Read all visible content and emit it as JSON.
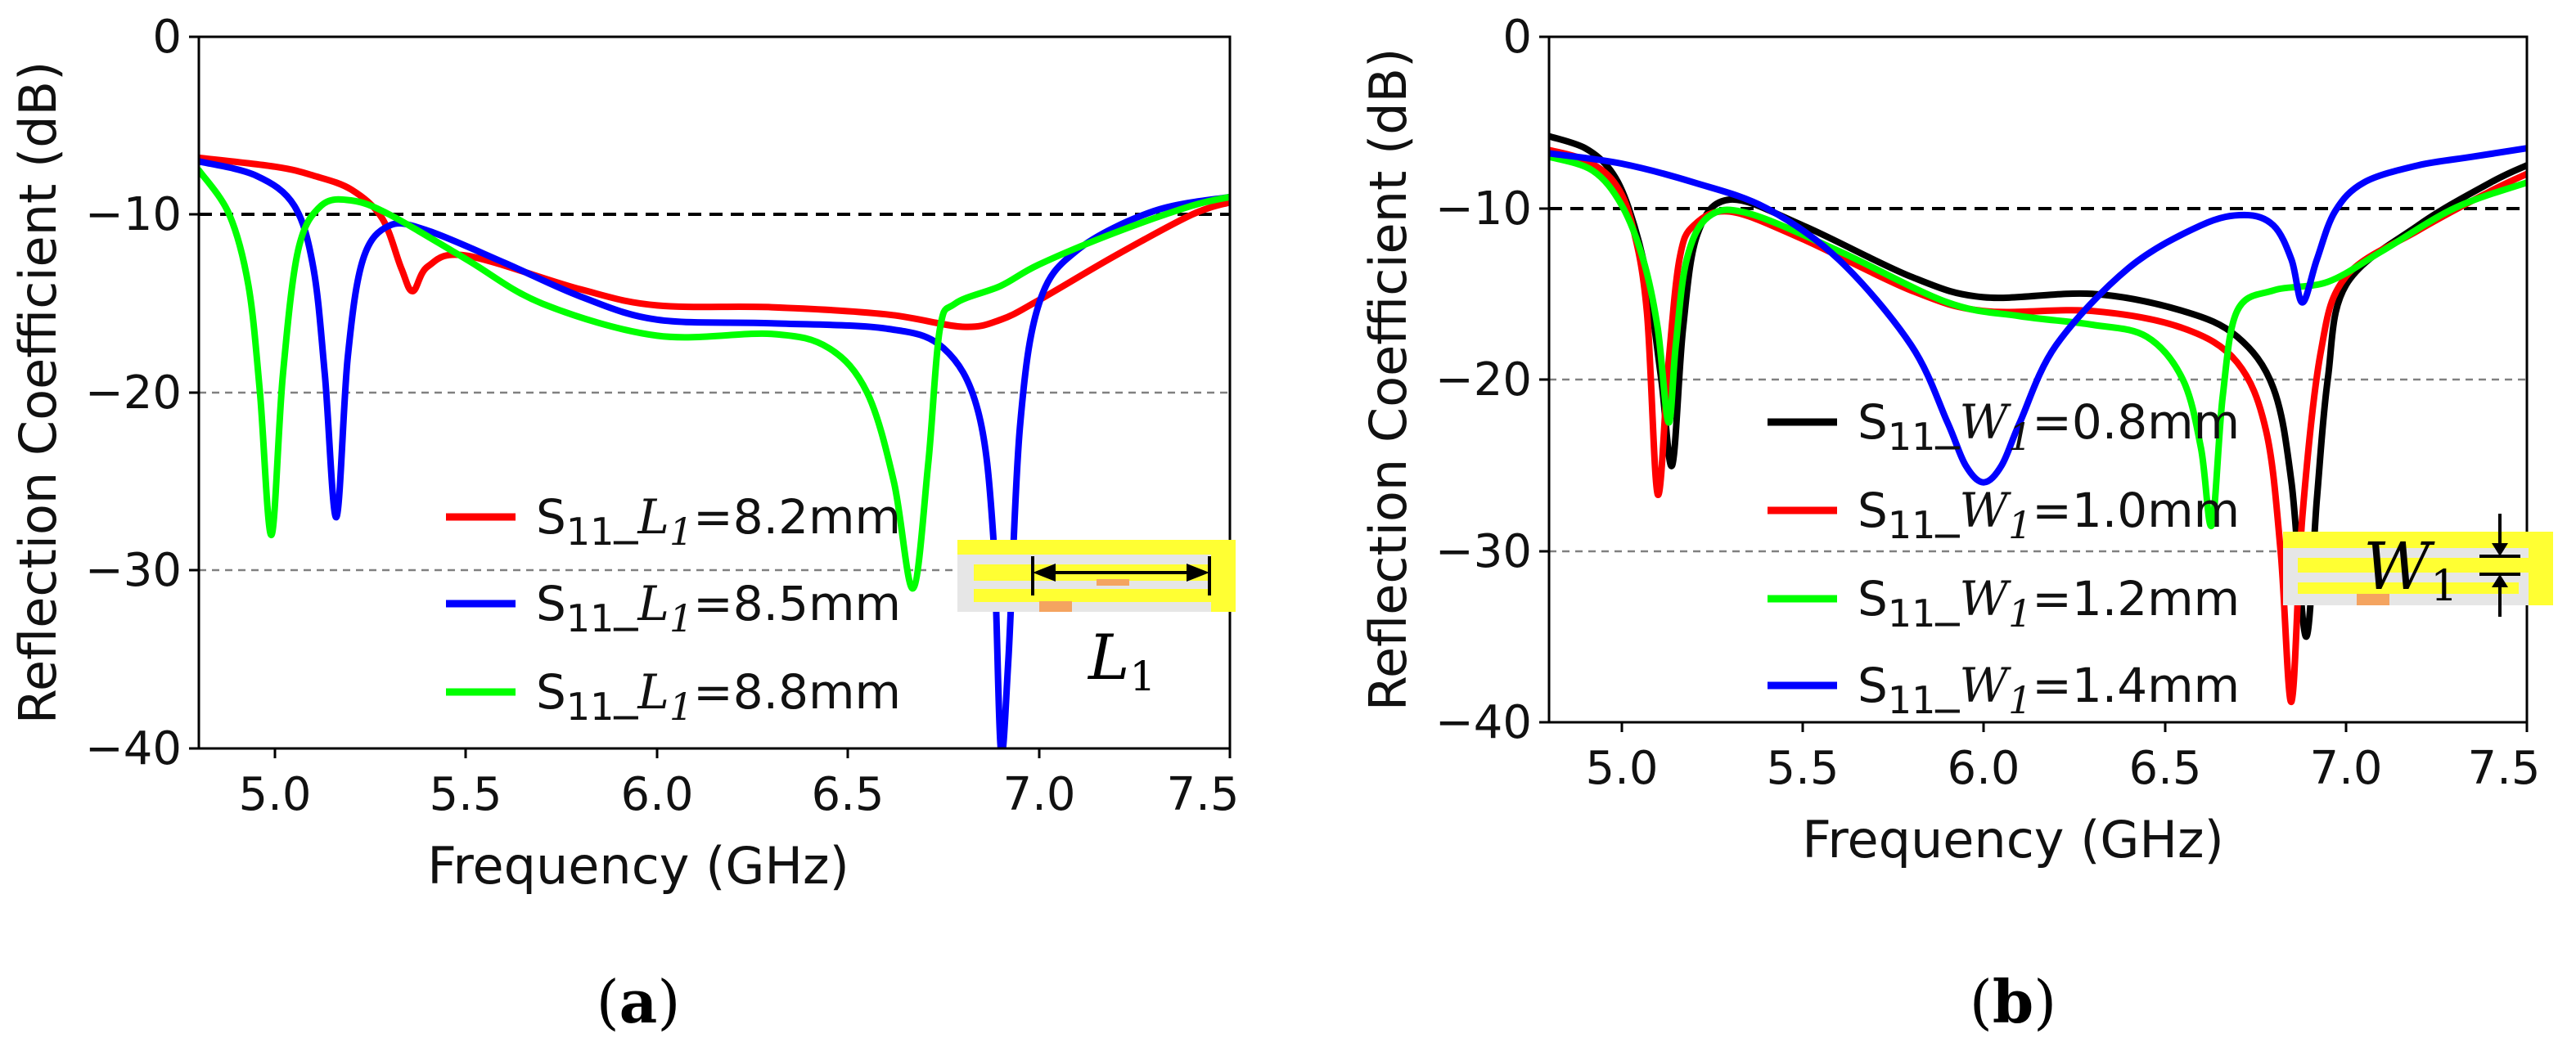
{
  "figure": {
    "caption_a": "a",
    "caption_b": "b",
    "inset_a_label": "L",
    "inset_a_sub": "1",
    "inset_b_label": "W",
    "inset_b_sub": "1"
  },
  "chart_data": [
    {
      "panel": "a",
      "type": "line",
      "xlabel": "Frequency (GHz)",
      "ylabel": "Reflection Coefficient (dB)",
      "xlim": [
        4.8,
        7.5
      ],
      "ylim": [
        -40,
        0
      ],
      "xticks": [
        "5.0",
        "5.5",
        "6.0",
        "6.5",
        "7.0",
        "7.5"
      ],
      "xtick_values": [
        5.0,
        5.5,
        6.0,
        6.5,
        7.0,
        7.5
      ],
      "yticks": [
        "0",
        "−10",
        "−20",
        "−30",
        "−40"
      ],
      "ytick_values": [
        0,
        -10,
        -20,
        -30,
        -40
      ],
      "reference_lines": [
        -10,
        -20,
        -30
      ],
      "legend_position": "lower-right",
      "series": [
        {
          "name": "S11_L1=8.2mm",
          "prefix": "S",
          "sub": "11",
          "var": "L",
          "varsub": "1",
          "suffix": "=8.2mm",
          "color": "#ff0000",
          "x": [
            4.8,
            5.0,
            5.1,
            5.2,
            5.28,
            5.33,
            5.36,
            5.4,
            5.5,
            5.8,
            6.0,
            6.3,
            6.6,
            6.8,
            6.9,
            7.0,
            7.2,
            7.4,
            7.5
          ],
          "y": [
            -6.8,
            -7.3,
            -7.8,
            -8.6,
            -10.2,
            -13.0,
            -14.3,
            -12.9,
            -12.3,
            -14.2,
            -15.1,
            -15.2,
            -15.6,
            -16.3,
            -15.9,
            -14.8,
            -12.3,
            -10.0,
            -9.3
          ]
        },
        {
          "name": "S11_L1=8.5mm",
          "prefix": "S",
          "sub": "11",
          "var": "L",
          "varsub": "1",
          "suffix": "=8.5mm",
          "color": "#0000ff",
          "x": [
            4.8,
            4.95,
            5.05,
            5.1,
            5.13,
            5.16,
            5.19,
            5.23,
            5.3,
            5.4,
            5.6,
            5.8,
            6.0,
            6.3,
            6.6,
            6.75,
            6.84,
            6.88,
            6.9,
            6.92,
            6.95,
            7.0,
            7.1,
            7.3,
            7.5
          ],
          "y": [
            -7.0,
            -7.8,
            -9.5,
            -13.0,
            -19.0,
            -27.0,
            -18.0,
            -12.5,
            -10.6,
            -10.9,
            -12.7,
            -14.6,
            -15.9,
            -16.1,
            -16.4,
            -17.5,
            -21.0,
            -28.0,
            -40.0,
            -35.0,
            -22.0,
            -15.0,
            -12.0,
            -9.8,
            -9.0
          ]
        },
        {
          "name": "S11_L1=8.8mm",
          "prefix": "S",
          "sub": "11",
          "var": "L",
          "varsub": "1",
          "suffix": "=8.8mm",
          "color": "#00ff00",
          "x": [
            4.8,
            4.88,
            4.93,
            4.96,
            4.99,
            5.02,
            5.06,
            5.12,
            5.2,
            5.3,
            5.5,
            5.7,
            6.0,
            6.3,
            6.45,
            6.55,
            6.62,
            6.67,
            6.71,
            6.74,
            6.78,
            6.9,
            7.0,
            7.2,
            7.4,
            7.5
          ],
          "y": [
            -7.5,
            -10.0,
            -14.0,
            -20.0,
            -28.0,
            -19.0,
            -12.0,
            -9.5,
            -9.2,
            -10.0,
            -12.5,
            -15.0,
            -16.8,
            -16.7,
            -17.5,
            -20.0,
            -25.0,
            -31.0,
            -24.0,
            -16.5,
            -15.0,
            -14.0,
            -12.8,
            -11.0,
            -9.5,
            -9.0
          ]
        }
      ]
    },
    {
      "panel": "b",
      "type": "line",
      "xlabel": "Frequency (GHz)",
      "ylabel": "Reflection Coefficient (dB)",
      "xlim": [
        4.8,
        7.5
      ],
      "ylim": [
        -40,
        0
      ],
      "xticks": [
        "5.0",
        "5.5",
        "6.0",
        "6.5",
        "7.0",
        "7.5"
      ],
      "xtick_values": [
        5.0,
        5.5,
        6.0,
        6.5,
        7.0,
        7.5
      ],
      "yticks": [
        "0",
        "−10",
        "−20",
        "−30",
        "−40"
      ],
      "ytick_values": [
        0,
        -10,
        -20,
        -30,
        -40
      ],
      "reference_lines": [
        -10,
        -20,
        -30
      ],
      "legend_position": "center-right",
      "series": [
        {
          "name": "S11_W1=0.8mm",
          "prefix": "S",
          "sub": "11",
          "var": "W",
          "varsub": "1",
          "suffix": "=0.8mm",
          "color": "#000000",
          "x": [
            4.8,
            4.9,
            4.97,
            5.02,
            5.07,
            5.11,
            5.14,
            5.17,
            5.21,
            5.3,
            5.5,
            5.8,
            6.0,
            6.3,
            6.55,
            6.7,
            6.8,
            6.85,
            6.89,
            6.92,
            6.95,
            7.0,
            7.2,
            7.4,
            7.5
          ],
          "y": [
            -5.8,
            -6.5,
            -7.8,
            -10.0,
            -14.0,
            -20.0,
            -25.0,
            -17.0,
            -11.5,
            -9.5,
            -11.0,
            -14.0,
            -15.2,
            -15.0,
            -16.0,
            -17.5,
            -20.5,
            -26.0,
            -35.0,
            -27.0,
            -20.0,
            -14.5,
            -11.0,
            -8.5,
            -7.5
          ]
        },
        {
          "name": "S11_W1=1.0mm",
          "prefix": "S",
          "sub": "11",
          "var": "W",
          "varsub": "1",
          "suffix": "=1.0mm",
          "color": "#ff0000",
          "x": [
            4.8,
            4.9,
            4.98,
            5.03,
            5.07,
            5.1,
            5.13,
            5.16,
            5.2,
            5.3,
            5.5,
            5.8,
            6.0,
            6.3,
            6.55,
            6.7,
            6.78,
            6.82,
            6.85,
            6.88,
            6.93,
            7.0,
            7.2,
            7.4,
            7.5
          ],
          "y": [
            -6.6,
            -7.2,
            -8.5,
            -11.0,
            -16.0,
            -26.7,
            -19.0,
            -13.0,
            -11.0,
            -10.2,
            -11.8,
            -14.8,
            -16.0,
            -16.0,
            -17.0,
            -19.0,
            -23.0,
            -30.0,
            -38.8,
            -28.0,
            -18.5,
            -14.0,
            -11.3,
            -9.0,
            -8.0
          ]
        },
        {
          "name": "S11_W1=1.2mm",
          "prefix": "S",
          "sub": "11",
          "var": "W",
          "varsub": "1",
          "suffix": "=1.2mm",
          "color": "#00ff00",
          "x": [
            4.8,
            4.92,
            5.0,
            5.06,
            5.1,
            5.13,
            5.15,
            5.18,
            5.24,
            5.35,
            5.6,
            5.9,
            6.1,
            6.3,
            6.45,
            6.55,
            6.6,
            6.63,
            6.66,
            6.7,
            6.8,
            6.95,
            7.1,
            7.3,
            7.5
          ],
          "y": [
            -7.0,
            -7.8,
            -9.8,
            -13.0,
            -17.0,
            -22.5,
            -18.0,
            -13.0,
            -10.5,
            -10.3,
            -12.5,
            -15.5,
            -16.3,
            -16.8,
            -17.5,
            -20.0,
            -24.0,
            -28.5,
            -21.0,
            -16.0,
            -14.8,
            -14.3,
            -12.5,
            -10.0,
            -8.5
          ]
        },
        {
          "name": "S11_W1=1.4mm",
          "prefix": "S",
          "sub": "11",
          "var": "W",
          "varsub": "1",
          "suffix": "=1.4mm",
          "color": "#0000ff",
          "x": [
            4.8,
            5.0,
            5.2,
            5.4,
            5.6,
            5.8,
            5.9,
            5.95,
            6.0,
            6.05,
            6.1,
            6.2,
            6.4,
            6.6,
            6.72,
            6.8,
            6.85,
            6.88,
            6.92,
            6.97,
            7.05,
            7.2,
            7.35,
            7.5
          ],
          "y": [
            -6.8,
            -7.4,
            -8.5,
            -10.0,
            -13.0,
            -18.0,
            -22.5,
            -25.0,
            -26.0,
            -25.0,
            -22.5,
            -18.0,
            -13.5,
            -11.0,
            -10.4,
            -11.0,
            -13.0,
            -15.5,
            -13.0,
            -10.2,
            -8.5,
            -7.5,
            -7.0,
            -6.5
          ]
        }
      ]
    }
  ]
}
